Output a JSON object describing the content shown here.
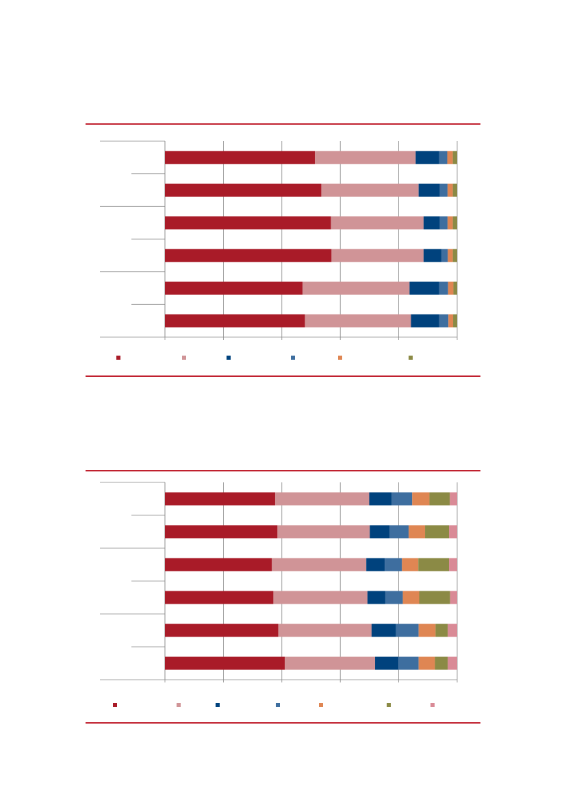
{
  "colors": {
    "rule": "#c0202e",
    "axis": "#898989",
    "grid": "#898989",
    "palette": [
      "#a91b28",
      "#d09497",
      "#00427d",
      "#3e6e9f",
      "#df8653",
      "#8b8a45",
      "#d98a96"
    ]
  },
  "chart_data": [
    {
      "type": "bar",
      "orientation": "horizontal",
      "stacked": "percent",
      "xlim": [
        0,
        100
      ],
      "grid": true,
      "legend_position": "bottom",
      "categories": [
        "",
        "",
        "",
        "",
        "",
        ""
      ],
      "series": [
        {
          "values": [
            51.3,
            53.5,
            56.8,
            57.0,
            47.1,
            47.9
          ]
        },
        {
          "values": [
            34.5,
            33.3,
            31.7,
            31.5,
            36.6,
            36.3
          ]
        },
        {
          "values": [
            8.0,
            7.3,
            5.6,
            6.1,
            10.1,
            9.6
          ]
        },
        {
          "values": [
            2.8,
            2.6,
            2.6,
            2.2,
            3.1,
            3.2
          ]
        },
        {
          "values": [
            1.9,
            1.8,
            1.8,
            1.7,
            1.8,
            1.6
          ]
        },
        {
          "values": [
            1.5,
            1.5,
            1.5,
            1.5,
            1.3,
            1.4
          ]
        }
      ]
    },
    {
      "type": "bar",
      "orientation": "horizontal",
      "stacked": "percent",
      "xlim": [
        0,
        100
      ],
      "grid": true,
      "legend_position": "bottom",
      "categories": [
        "",
        "",
        "",
        "",
        "",
        ""
      ],
      "series": [
        {
          "values": [
            37.7,
            38.5,
            36.6,
            37.1,
            38.8,
            41.0
          ]
        },
        {
          "values": [
            32.2,
            31.6,
            32.3,
            32.2,
            31.9,
            30.9
          ]
        },
        {
          "values": [
            7.7,
            6.8,
            6.3,
            6.1,
            8.4,
            8.0
          ]
        },
        {
          "values": [
            7.0,
            6.5,
            5.9,
            6.0,
            7.7,
            6.9
          ]
        },
        {
          "values": [
            5.9,
            5.6,
            5.6,
            5.6,
            5.8,
            5.6
          ]
        },
        {
          "values": [
            7.0,
            8.2,
            10.5,
            10.6,
            4.2,
            4.4
          ]
        },
        {
          "values": [
            2.5,
            2.8,
            2.8,
            2.4,
            3.2,
            3.2
          ]
        }
      ]
    }
  ]
}
